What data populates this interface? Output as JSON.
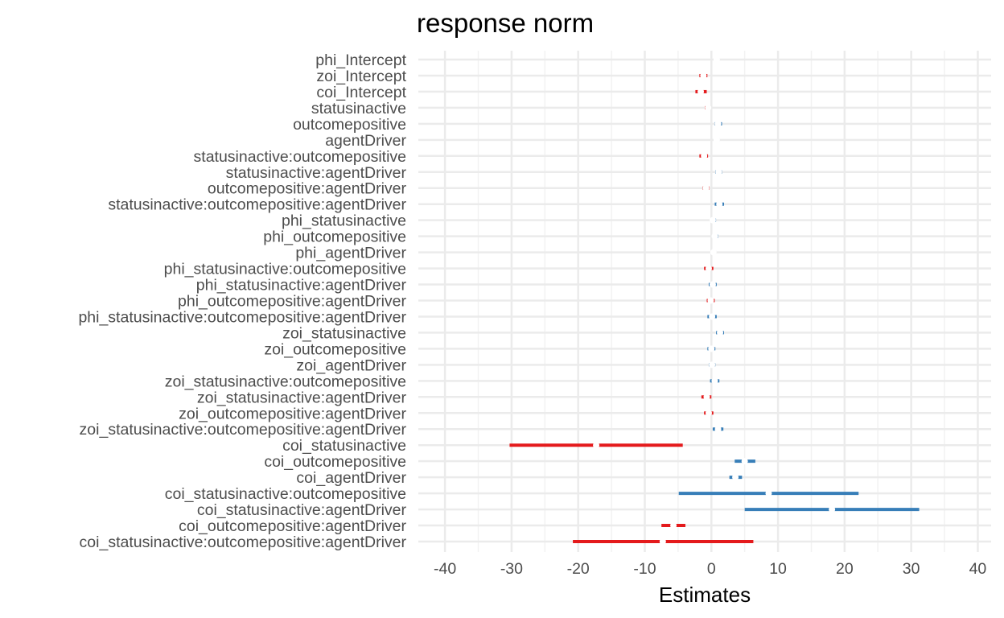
{
  "chart_data": {
    "type": "forest",
    "title": "response norm",
    "xlabel": "Estimates",
    "xlim": [
      -44,
      42
    ],
    "x_ticks": [
      -40,
      -30,
      -20,
      -10,
      0,
      10,
      20,
      30,
      40
    ],
    "x_tick_labels": [
      "-40",
      "-30",
      "-20",
      "-10",
      "0",
      "10",
      "20",
      "30",
      "40"
    ],
    "grid": true,
    "colors": {
      "positive": "#377EB8",
      "negative": "#E41A1C",
      "grid_major": "#ebebeb",
      "grid_minor": "#f2f2f2"
    },
    "terms": [
      {
        "label": "phi_Intercept",
        "estimate": 0.8,
        "low": 0.4,
        "high": 1.2
      },
      {
        "label": "zoi_Intercept",
        "estimate": -1.2,
        "low": -1.8,
        "high": -0.6
      },
      {
        "label": "coi_Intercept",
        "estimate": -1.6,
        "low": -2.4,
        "high": -0.7
      },
      {
        "label": "statusinactive",
        "estimate": -0.5,
        "low": -1.0,
        "high": -0.1
      },
      {
        "label": "outcomepositive",
        "estimate": 1.0,
        "low": 0.5,
        "high": 1.6
      },
      {
        "label": "agentDriver",
        "estimate": 0.8,
        "low": 0.4,
        "high": 1.2
      },
      {
        "label": "statusinactive:outcomepositive",
        "estimate": -1.1,
        "low": -1.8,
        "high": -0.5
      },
      {
        "label": "statusinactive:agentDriver",
        "estimate": 1.1,
        "low": 0.6,
        "high": 1.6
      },
      {
        "label": "outcomepositive:agentDriver",
        "estimate": -0.8,
        "low": -1.3,
        "high": -0.3
      },
      {
        "label": "statusinactive:outcomepositive:agentDriver",
        "estimate": 1.2,
        "low": 0.5,
        "high": 1.9
      },
      {
        "label": "phi_statusinactive",
        "estimate": 0.2,
        "low": -0.2,
        "high": 0.7
      },
      {
        "label": "phi_outcomepositive",
        "estimate": 0.5,
        "low": 0.1,
        "high": 1.0
      },
      {
        "label": "phi_agentDriver",
        "estimate": 0.3,
        "low": -0.1,
        "high": 0.7
      },
      {
        "label": "phi_statusinactive:outcomepositive",
        "estimate": -0.4,
        "low": -1.1,
        "high": 0.3
      },
      {
        "label": "phi_statusinactive:agentDriver",
        "estimate": 0.2,
        "low": -0.4,
        "high": 0.8
      },
      {
        "label": "phi_outcomepositive:agentDriver",
        "estimate": -0.1,
        "low": -0.7,
        "high": 0.5
      },
      {
        "label": "phi_statusinactive:outcomepositive:agentDriver",
        "estimate": 0.1,
        "low": -0.6,
        "high": 0.8
      },
      {
        "label": "zoi_statusinactive",
        "estimate": 1.3,
        "low": 0.7,
        "high": 1.9
      },
      {
        "label": "zoi_outcomepositive",
        "estimate": 0.0,
        "low": -0.6,
        "high": 0.6
      },
      {
        "label": "zoi_agentDriver",
        "estimate": 0.1,
        "low": -0.4,
        "high": 0.6
      },
      {
        "label": "zoi_statusinactive:outcomepositive",
        "estimate": 0.5,
        "low": -0.2,
        "high": 1.2
      },
      {
        "label": "zoi_statusinactive:agentDriver",
        "estimate": -0.7,
        "low": -1.5,
        "high": 0.0
      },
      {
        "label": "zoi_outcomepositive:agentDriver",
        "estimate": -0.4,
        "low": -1.1,
        "high": 0.3
      },
      {
        "label": "zoi_statusinactive:outcomepositive:agentDriver",
        "estimate": 1.0,
        "low": 0.2,
        "high": 1.8
      },
      {
        "label": "coi_statusinactive",
        "estimate": -17.3,
        "low": -30.3,
        "high": -4.3
      },
      {
        "label": "coi_outcomepositive",
        "estimate": 5.0,
        "low": 3.5,
        "high": 6.6
      },
      {
        "label": "coi_agentDriver",
        "estimate": 3.6,
        "low": 2.7,
        "high": 4.6
      },
      {
        "label": "coi_statusinactive:outcomepositive",
        "estimate": 8.6,
        "low": -4.9,
        "high": 22.1
      },
      {
        "label": "coi_statusinactive:agentDriver",
        "estimate": 18.1,
        "low": 5.0,
        "high": 31.2
      },
      {
        "label": "coi_outcomepositive:agentDriver",
        "estimate": -5.7,
        "low": -7.5,
        "high": -3.9
      },
      {
        "label": "coi_statusinactive:outcomepositive:agentDriver",
        "estimate": -7.3,
        "low": -20.8,
        "high": 6.3
      }
    ]
  }
}
